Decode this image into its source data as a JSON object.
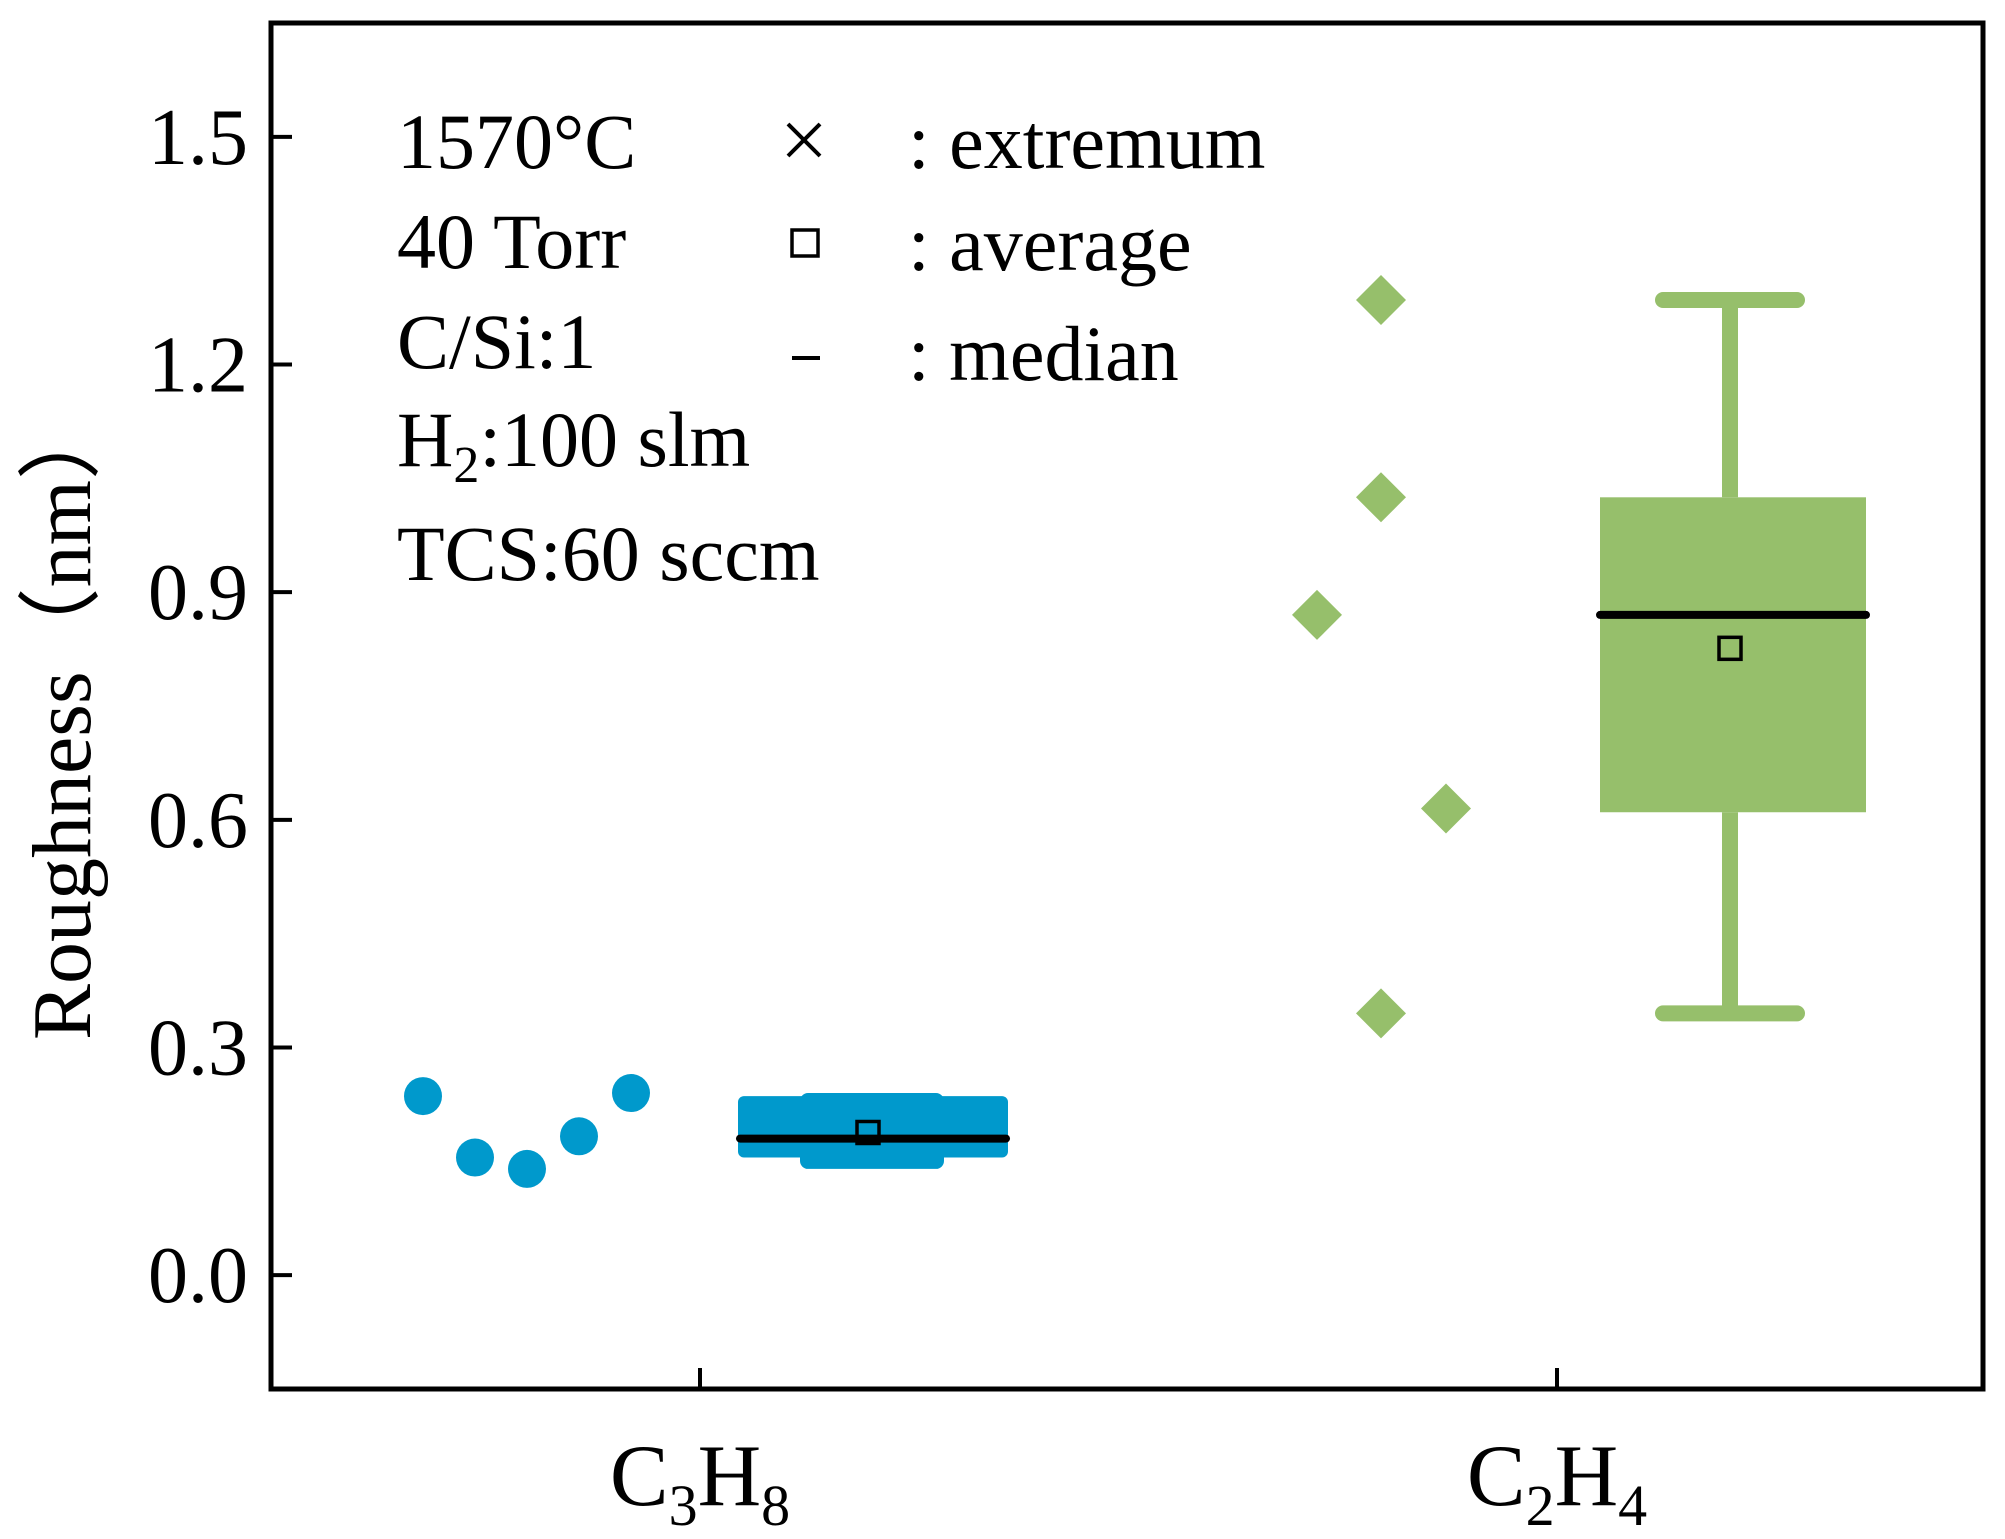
{
  "chart_data": {
    "type": "box",
    "title": "",
    "xlabel": "",
    "ylabel": "Roughness（nm）",
    "ylim": [
      -0.15,
      1.65
    ],
    "yticks": [
      0.0,
      0.3,
      0.6,
      0.9,
      1.2,
      1.5
    ],
    "ytick_labels": [
      "0.0",
      "0.3",
      "0.6",
      "0.9",
      "1.2",
      "1.5"
    ],
    "categories": [
      {
        "base": "C",
        "sub1": "3",
        "mid": "H",
        "sub2": "8"
      },
      {
        "base": "C",
        "sub1": "2",
        "mid": "H",
        "sub2": "4"
      }
    ],
    "series": [
      {
        "name": "C3H8",
        "color": "#0099cc",
        "marker": "circle",
        "points": [
          0.236,
          0.155,
          0.14,
          0.183,
          0.24
        ],
        "q1": 0.155,
        "q3": 0.236,
        "whisker_low": 0.14,
        "whisker_high": 0.24,
        "median": 0.18,
        "mean": 0.188
      },
      {
        "name": "C2H4",
        "color": "#96bf6b",
        "marker": "diamond",
        "points": [
          0.87,
          1.285,
          1.025,
          0.615,
          0.345
        ],
        "q1": 0.61,
        "q3": 1.025,
        "whisker_low": 0.345,
        "whisker_high": 1.285,
        "median": 0.87,
        "mean": 0.826
      }
    ],
    "conditions": [
      {
        "text": "1570°C"
      },
      {
        "text": "40 Torr"
      },
      {
        "text": "C/Si:1"
      },
      {
        "pre": "H",
        "sub": "2",
        "post": ":100 slm"
      },
      {
        "text": "TCS:60 sccm"
      }
    ],
    "legend": [
      {
        "symbol": "cross",
        "label": ": extremum"
      },
      {
        "symbol": "square",
        "label": ": average"
      },
      {
        "symbol": "dash",
        "label": ": median"
      }
    ]
  }
}
